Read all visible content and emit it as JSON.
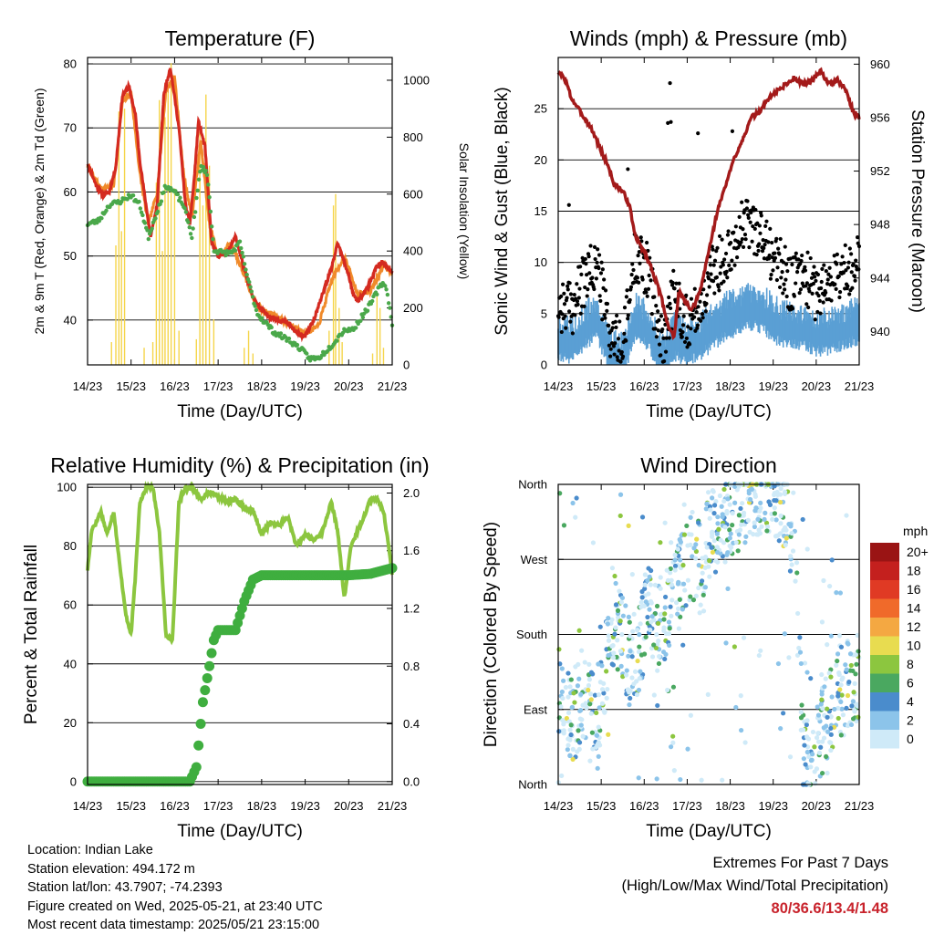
{
  "info": {
    "location": "Location: Indian Lake",
    "elevation": "Station elevation: 494.172 m",
    "latlon": "Station lat/lon: 43.7907; -74.2393",
    "created": "Figure created on Wed, 2025-05-21, at 23:40 UTC",
    "recent": "Most recent data timestamp: 2025/05/21 23:15:00"
  },
  "extremes": {
    "title": "Extremes For Past 7 Days",
    "subtitle": "(High/Low/Max Wind/Total Precipitation)",
    "values": "80/36.6/13.4/1.48",
    "color": "#c8232c"
  },
  "colors": {
    "temp_red": "#d42a20",
    "temp_orange": "#f08a2a",
    "dewpoint_green": "#4aa84a",
    "solar_yellow": "#f5d54a",
    "gust_black": "#000000",
    "wind_blue": "#5a9fd4",
    "pressure_maroon": "#a31a1a",
    "rh_lightgreen": "#8cc63f",
    "precip_green": "#3fae3f"
  },
  "chart_data": [
    {
      "id": "temperature",
      "type": "line",
      "title": "Temperature (F)",
      "xlabel": "Time (Day/UTC)",
      "ylabel": "2m & 9m T (Red, Orange) & 2m Td (Green)",
      "y2label": "Solar Insolation (Yellow)",
      "xlim": [
        0,
        7
      ],
      "ylim": [
        33,
        81
      ],
      "y2lim": [
        0,
        1080
      ],
      "xticks": [
        "14/23",
        "15/23",
        "16/23",
        "17/23",
        "18/23",
        "19/23",
        "20/23",
        "21/23"
      ],
      "yticks": [
        40,
        50,
        60,
        70,
        80
      ],
      "y2ticks": [
        0,
        200,
        400,
        600,
        800,
        1000
      ],
      "grid": true,
      "series": [
        {
          "x": [
            0,
            0.2,
            0.35,
            0.5,
            0.65,
            0.8,
            0.95,
            1.1,
            1.2,
            1.3,
            1.45,
            1.6,
            1.75,
            1.9,
            2.1,
            2.25,
            2.35,
            2.45,
            2.55,
            2.7,
            2.85,
            3.0,
            3.2,
            3.4,
            3.6,
            3.8,
            4.0,
            4.2,
            4.4,
            4.6,
            4.8,
            5.0,
            5.2,
            5.4,
            5.6,
            5.75,
            5.9,
            6.0,
            6.1,
            6.2,
            6.35,
            6.5,
            6.65,
            6.8,
            6.9,
            7.0
          ],
          "values": [
            64.5,
            61,
            59.5,
            60,
            64,
            75,
            76.5,
            72,
            65,
            60,
            53,
            58,
            75,
            79.5,
            70,
            58,
            55,
            62,
            71,
            67,
            52,
            50,
            50.5,
            53,
            48,
            43.5,
            41.5,
            40.5,
            40,
            39.5,
            38,
            37.5,
            40,
            44,
            48,
            52,
            49,
            47,
            44,
            43,
            44,
            46,
            48.5,
            49,
            48,
            47.5
          ]
        },
        {
          "x": [
            0,
            0.3,
            0.6,
            0.8,
            1.0,
            1.2,
            1.4,
            1.6,
            1.8,
            2.0,
            2.2,
            2.4,
            2.6,
            2.8,
            3.0,
            3.3,
            3.6,
            3.9,
            4.2,
            4.6,
            5.0,
            5.3,
            5.6,
            5.9,
            6.2,
            6.5,
            6.8,
            7.0
          ],
          "values": [
            64,
            60.5,
            61,
            74,
            75.5,
            63,
            55,
            60,
            76,
            78,
            63,
            56,
            68,
            55,
            50,
            52,
            47,
            42,
            41,
            39.5,
            38,
            39,
            46,
            50,
            44,
            44.5,
            48.5,
            47.5
          ]
        },
        {
          "x": [
            0,
            0.25,
            0.5,
            0.75,
            1.0,
            1.2,
            1.4,
            1.6,
            1.8,
            2.0,
            2.2,
            2.4,
            2.6,
            2.75,
            2.9,
            3.1,
            3.3,
            3.5,
            3.7,
            3.9,
            4.1,
            4.3,
            4.6,
            4.9,
            5.1,
            5.3,
            5.6,
            5.9,
            6.1,
            6.3,
            6.5,
            6.7,
            6.8,
            6.9,
            7.0
          ],
          "values": [
            55,
            55.5,
            58,
            58.5,
            59.5,
            58,
            53,
            57,
            61,
            60,
            58,
            53,
            64,
            63,
            51,
            50.5,
            50.5,
            52,
            46,
            41,
            39.5,
            38,
            37,
            35.5,
            34,
            34,
            36,
            38.5,
            38.5,
            40.5,
            42.5,
            45,
            46,
            44,
            39
          ]
        },
        {
          "x": [
            0.55,
            0.65,
            0.72,
            0.78,
            0.85,
            1.3,
            1.5,
            1.58,
            1.65,
            1.72,
            1.78,
            1.85,
            1.92,
            2.0,
            2.1,
            2.5,
            2.58,
            2.65,
            2.72,
            2.8,
            2.9,
            3.6,
            3.7,
            3.8,
            5.55,
            5.65,
            5.7,
            5.78,
            5.85,
            6.55,
            6.65,
            6.72,
            6.8
          ],
          "values": [
            80,
            420,
            890,
            470,
            900,
            60,
            80,
            640,
            930,
            400,
            870,
            980,
            1060,
            620,
            120,
            90,
            820,
            560,
            950,
            700,
            160,
            60,
            120,
            40,
            120,
            560,
            600,
            200,
            80,
            40,
            240,
            200,
            60
          ]
        }
      ]
    },
    {
      "id": "winds",
      "type": "scatter",
      "title": "Winds (mph) & Pressure (mb)",
      "xlabel": "Time (Day/UTC)",
      "ylabel": "Sonic Wind & Gust (Blue, Black)",
      "y2label": "Station Pressure (Maroon)",
      "xlim": [
        0,
        7
      ],
      "ylim": [
        0,
        30
      ],
      "y2lim": [
        937.5,
        960.5
      ],
      "xticks": [
        "14/23",
        "15/23",
        "16/23",
        "17/23",
        "18/23",
        "19/23",
        "20/23",
        "21/23"
      ],
      "yticks": [
        0,
        5,
        10,
        15,
        20,
        25
      ],
      "y2ticks": [
        940,
        944,
        948,
        952,
        956,
        960
      ],
      "grid": true,
      "series": [
        {
          "x": [
            0,
            0.3,
            0.6,
            0.9,
            1.2,
            1.5,
            1.8,
            2.1,
            2.4,
            2.7,
            3.0,
            3.3,
            3.6,
            3.9,
            4.2,
            4.5,
            4.8,
            5.1,
            5.4,
            5.7,
            6.0,
            6.3,
            6.6,
            6.9
          ],
          "values": [
            6,
            5.5,
            8,
            10,
            3,
            1.5,
            11,
            9,
            2,
            7,
            4,
            6,
            9,
            11,
            13,
            14,
            12,
            10,
            8,
            9,
            7,
            8,
            9,
            10
          ]
        },
        {
          "x": [
            0,
            0.3,
            0.6,
            0.9,
            1.2,
            1.5,
            1.8,
            2.1,
            2.4,
            2.7,
            3.0,
            3.3,
            3.6,
            3.9,
            4.2,
            4.5,
            4.8,
            5.1,
            5.4,
            5.7,
            6.0,
            6.3,
            6.6,
            6.9
          ],
          "values": [
            3,
            2.5,
            4,
            5,
            1.5,
            1,
            5,
            4,
            1,
            3,
            2.5,
            3,
            4,
            5,
            5.5,
            6,
            5.5,
            4.5,
            4,
            4,
            3.5,
            3.5,
            4,
            4.5
          ]
        },
        {
          "x": [
            0,
            0.15,
            0.3,
            0.5,
            0.65,
            0.8,
            1.0,
            1.15,
            1.3,
            1.5,
            1.65,
            1.8,
            2.0,
            2.2,
            2.4,
            2.55,
            2.7,
            2.8,
            2.9,
            3.1,
            3.3,
            3.5,
            3.7,
            3.9,
            4.1,
            4.3,
            4.5,
            4.7,
            4.9,
            5.1,
            5.3,
            5.5,
            5.7,
            5.9,
            6.1,
            6.3,
            6.5,
            6.7,
            6.85,
            7.0
          ],
          "values": [
            959.3,
            959.0,
            957.5,
            956.5,
            955.8,
            955.0,
            953.5,
            952.5,
            951.0,
            950.5,
            949.5,
            947.0,
            946.0,
            944.5,
            942.5,
            940.5,
            939.5,
            943.0,
            942.5,
            941.5,
            943.0,
            946.0,
            949.0,
            951.0,
            953.0,
            954.5,
            956.0,
            956.5,
            957.5,
            958.0,
            958.5,
            959.0,
            958.5,
            958.8,
            959.5,
            958.5,
            958.8,
            958.0,
            956.5,
            956.0
          ]
        }
      ]
    },
    {
      "id": "humidity",
      "type": "line",
      "title": "Relative Humidity (%) & Precipitation (in)",
      "xlabel": "Time (Day/UTC)",
      "ylabel": "Percent & Total Rainfall",
      "xlim": [
        0,
        7
      ],
      "ylim": [
        -1,
        101
      ],
      "y2lim": [
        -0.0204,
        2.06
      ],
      "xticks": [
        "14/23",
        "15/23",
        "16/23",
        "17/23",
        "18/23",
        "19/23",
        "20/23",
        "21/23"
      ],
      "yticks": [
        0,
        20,
        40,
        60,
        80,
        100
      ],
      "y2ticks": [
        "0.0",
        "0.4",
        "0.8",
        "1.2",
        "1.6",
        "2.0"
      ],
      "grid": true,
      "series": [
        {
          "x": [
            0,
            0.1,
            0.2,
            0.3,
            0.45,
            0.6,
            0.75,
            0.9,
            1.0,
            1.1,
            1.2,
            1.35,
            1.5,
            1.65,
            1.8,
            1.95,
            2.1,
            2.25,
            2.4,
            2.6,
            2.8,
            3.0,
            3.2,
            3.4,
            3.6,
            3.8,
            4.0,
            4.2,
            4.4,
            4.6,
            4.8,
            5.0,
            5.2,
            5.4,
            5.6,
            5.75,
            5.9,
            6.05,
            6.2,
            6.35,
            6.5,
            6.65,
            6.8,
            6.9,
            7.0
          ],
          "values": [
            72,
            86,
            88,
            92,
            84,
            92,
            72,
            55,
            50,
            70,
            95,
            100,
            100,
            85,
            50,
            48,
            95,
            100,
            100,
            96,
            98,
            97,
            95,
            96,
            93,
            92,
            84,
            88,
            87,
            90,
            80,
            84,
            82,
            85,
            95,
            85,
            62,
            80,
            85,
            90,
            96,
            96,
            92,
            82,
            70
          ]
        },
        {
          "x": [
            0,
            2.35,
            2.5,
            2.65,
            2.8,
            2.9,
            3.0,
            3.2,
            3.4,
            3.6,
            3.8,
            4.0,
            4.4,
            5.0,
            5.5,
            6.0,
            6.5,
            7.0
          ],
          "values": [
            0.0,
            0.0,
            0.1,
            0.55,
            0.8,
            0.98,
            1.05,
            1.05,
            1.05,
            1.25,
            1.4,
            1.43,
            1.43,
            1.43,
            1.43,
            1.43,
            1.44,
            1.48
          ]
        }
      ]
    },
    {
      "id": "wind_direction",
      "type": "scatter",
      "title": "Wind Direction",
      "xlabel": "Time (Day/UTC)",
      "ylabel": "Direction (Colored By Speed)",
      "xlim": [
        0,
        7
      ],
      "ylim": [
        0,
        360
      ],
      "xticks": [
        "14/23",
        "15/23",
        "16/23",
        "17/23",
        "18/23",
        "19/23",
        "20/23",
        "21/23"
      ],
      "yticks": [
        "North",
        "East",
        "South",
        "West",
        "North"
      ],
      "legend": {
        "unit": "mph",
        "labels": [
          "0",
          "2",
          "4",
          "6",
          "8",
          "10",
          "12",
          "14",
          "16",
          "18",
          "20+"
        ],
        "colors": [
          "#cfeaf8",
          "#8cc4ea",
          "#4a8ccc",
          "#4aa860",
          "#8cc63f",
          "#e8dc50",
          "#f4a842",
          "#f06a2a",
          "#e03a24",
          "#c4201e",
          "#9a1414"
        ]
      },
      "series": [
        {
          "x": [
            0.1,
            0.3,
            0.5,
            0.7,
            0.9,
            1.1,
            1.3,
            1.5,
            1.7,
            1.9,
            2.1,
            2.3,
            2.5,
            2.7,
            2.9,
            3.1,
            3.3,
            3.5,
            3.7,
            3.9,
            4.1,
            4.3,
            4.5,
            4.7,
            4.9,
            5.1,
            5.3,
            5.5,
            5.7,
            5.9,
            6.1,
            6.3,
            6.5,
            6.7,
            6.9
          ],
          "values": [
            100,
            80,
            95,
            110,
            60,
            150,
            200,
            180,
            140,
            170,
            220,
            190,
            200,
            230,
            250,
            280,
            260,
            300,
            310,
            320,
            330,
            340,
            350,
            355,
            358,
            345,
            330,
            300,
            30,
            20,
            60,
            90,
            110,
            120,
            130
          ]
        }
      ]
    }
  ]
}
